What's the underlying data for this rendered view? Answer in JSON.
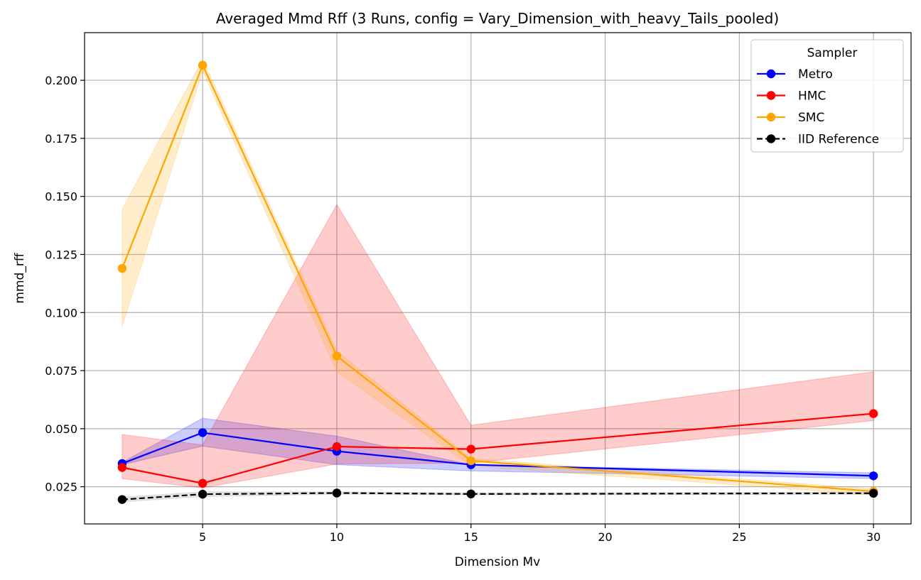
{
  "chart_data": {
    "type": "line",
    "title": "Averaged Mmd Rff (3 Runs, config = Vary_Dimension_with_heavy_Tails_pooled)",
    "xlabel": "Dimension Mv",
    "ylabel": "mmd_rff",
    "xlim": [
      0.6,
      31.4
    ],
    "ylim": [
      0.009,
      0.2205
    ],
    "xticks": [
      5,
      10,
      15,
      20,
      25,
      30
    ],
    "yticks": [
      0.025,
      0.05,
      0.075,
      0.1,
      0.125,
      0.15,
      0.175,
      0.2
    ],
    "ytick_labels": [
      "0.025",
      "0.050",
      "0.075",
      "0.100",
      "0.125",
      "0.150",
      "0.175",
      "0.200"
    ],
    "grid": true,
    "legend": {
      "title": "Sampler",
      "position": "top-right"
    },
    "x": [
      2,
      5,
      10,
      15,
      30
    ],
    "series": [
      {
        "name": "Metro",
        "color": "#0000ff",
        "linestyle": "solid",
        "values": [
          0.035,
          0.0483,
          0.0403,
          0.0345,
          0.0297
        ],
        "band_lower": [
          0.0345,
          0.0425,
          0.0345,
          0.0318,
          0.0285
        ],
        "band_upper": [
          0.0355,
          0.0545,
          0.0468,
          0.0345,
          0.031
        ]
      },
      {
        "name": "HMC",
        "color": "#ff0000",
        "linestyle": "solid",
        "values": [
          0.0333,
          0.0265,
          0.0423,
          0.0412,
          0.0565
        ],
        "band_lower": [
          0.0285,
          0.0245,
          0.0348,
          0.0352,
          0.0535
        ],
        "band_upper": [
          0.0475,
          0.043,
          0.1465,
          0.0515,
          0.0745
        ]
      },
      {
        "name": "SMC",
        "color": "#ffa500",
        "linestyle": "solid",
        "values": [
          0.119,
          0.2065,
          0.0813,
          0.0362,
          0.023
        ],
        "band_lower": [
          0.094,
          0.204,
          0.0745,
          0.034,
          0.0215
        ],
        "band_upper": [
          0.1445,
          0.209,
          0.0835,
          0.0372,
          0.024
        ]
      },
      {
        "name": "IID Reference",
        "color": "#000000",
        "linestyle": "dashed",
        "values": [
          0.0195,
          0.0218,
          0.0223,
          0.0219,
          0.0222
        ],
        "band_lower": [
          0.0185,
          0.0208,
          0.0218,
          0.0215,
          0.0217
        ],
        "band_upper": [
          0.0205,
          0.0228,
          0.0228,
          0.0223,
          0.0227
        ]
      }
    ]
  }
}
